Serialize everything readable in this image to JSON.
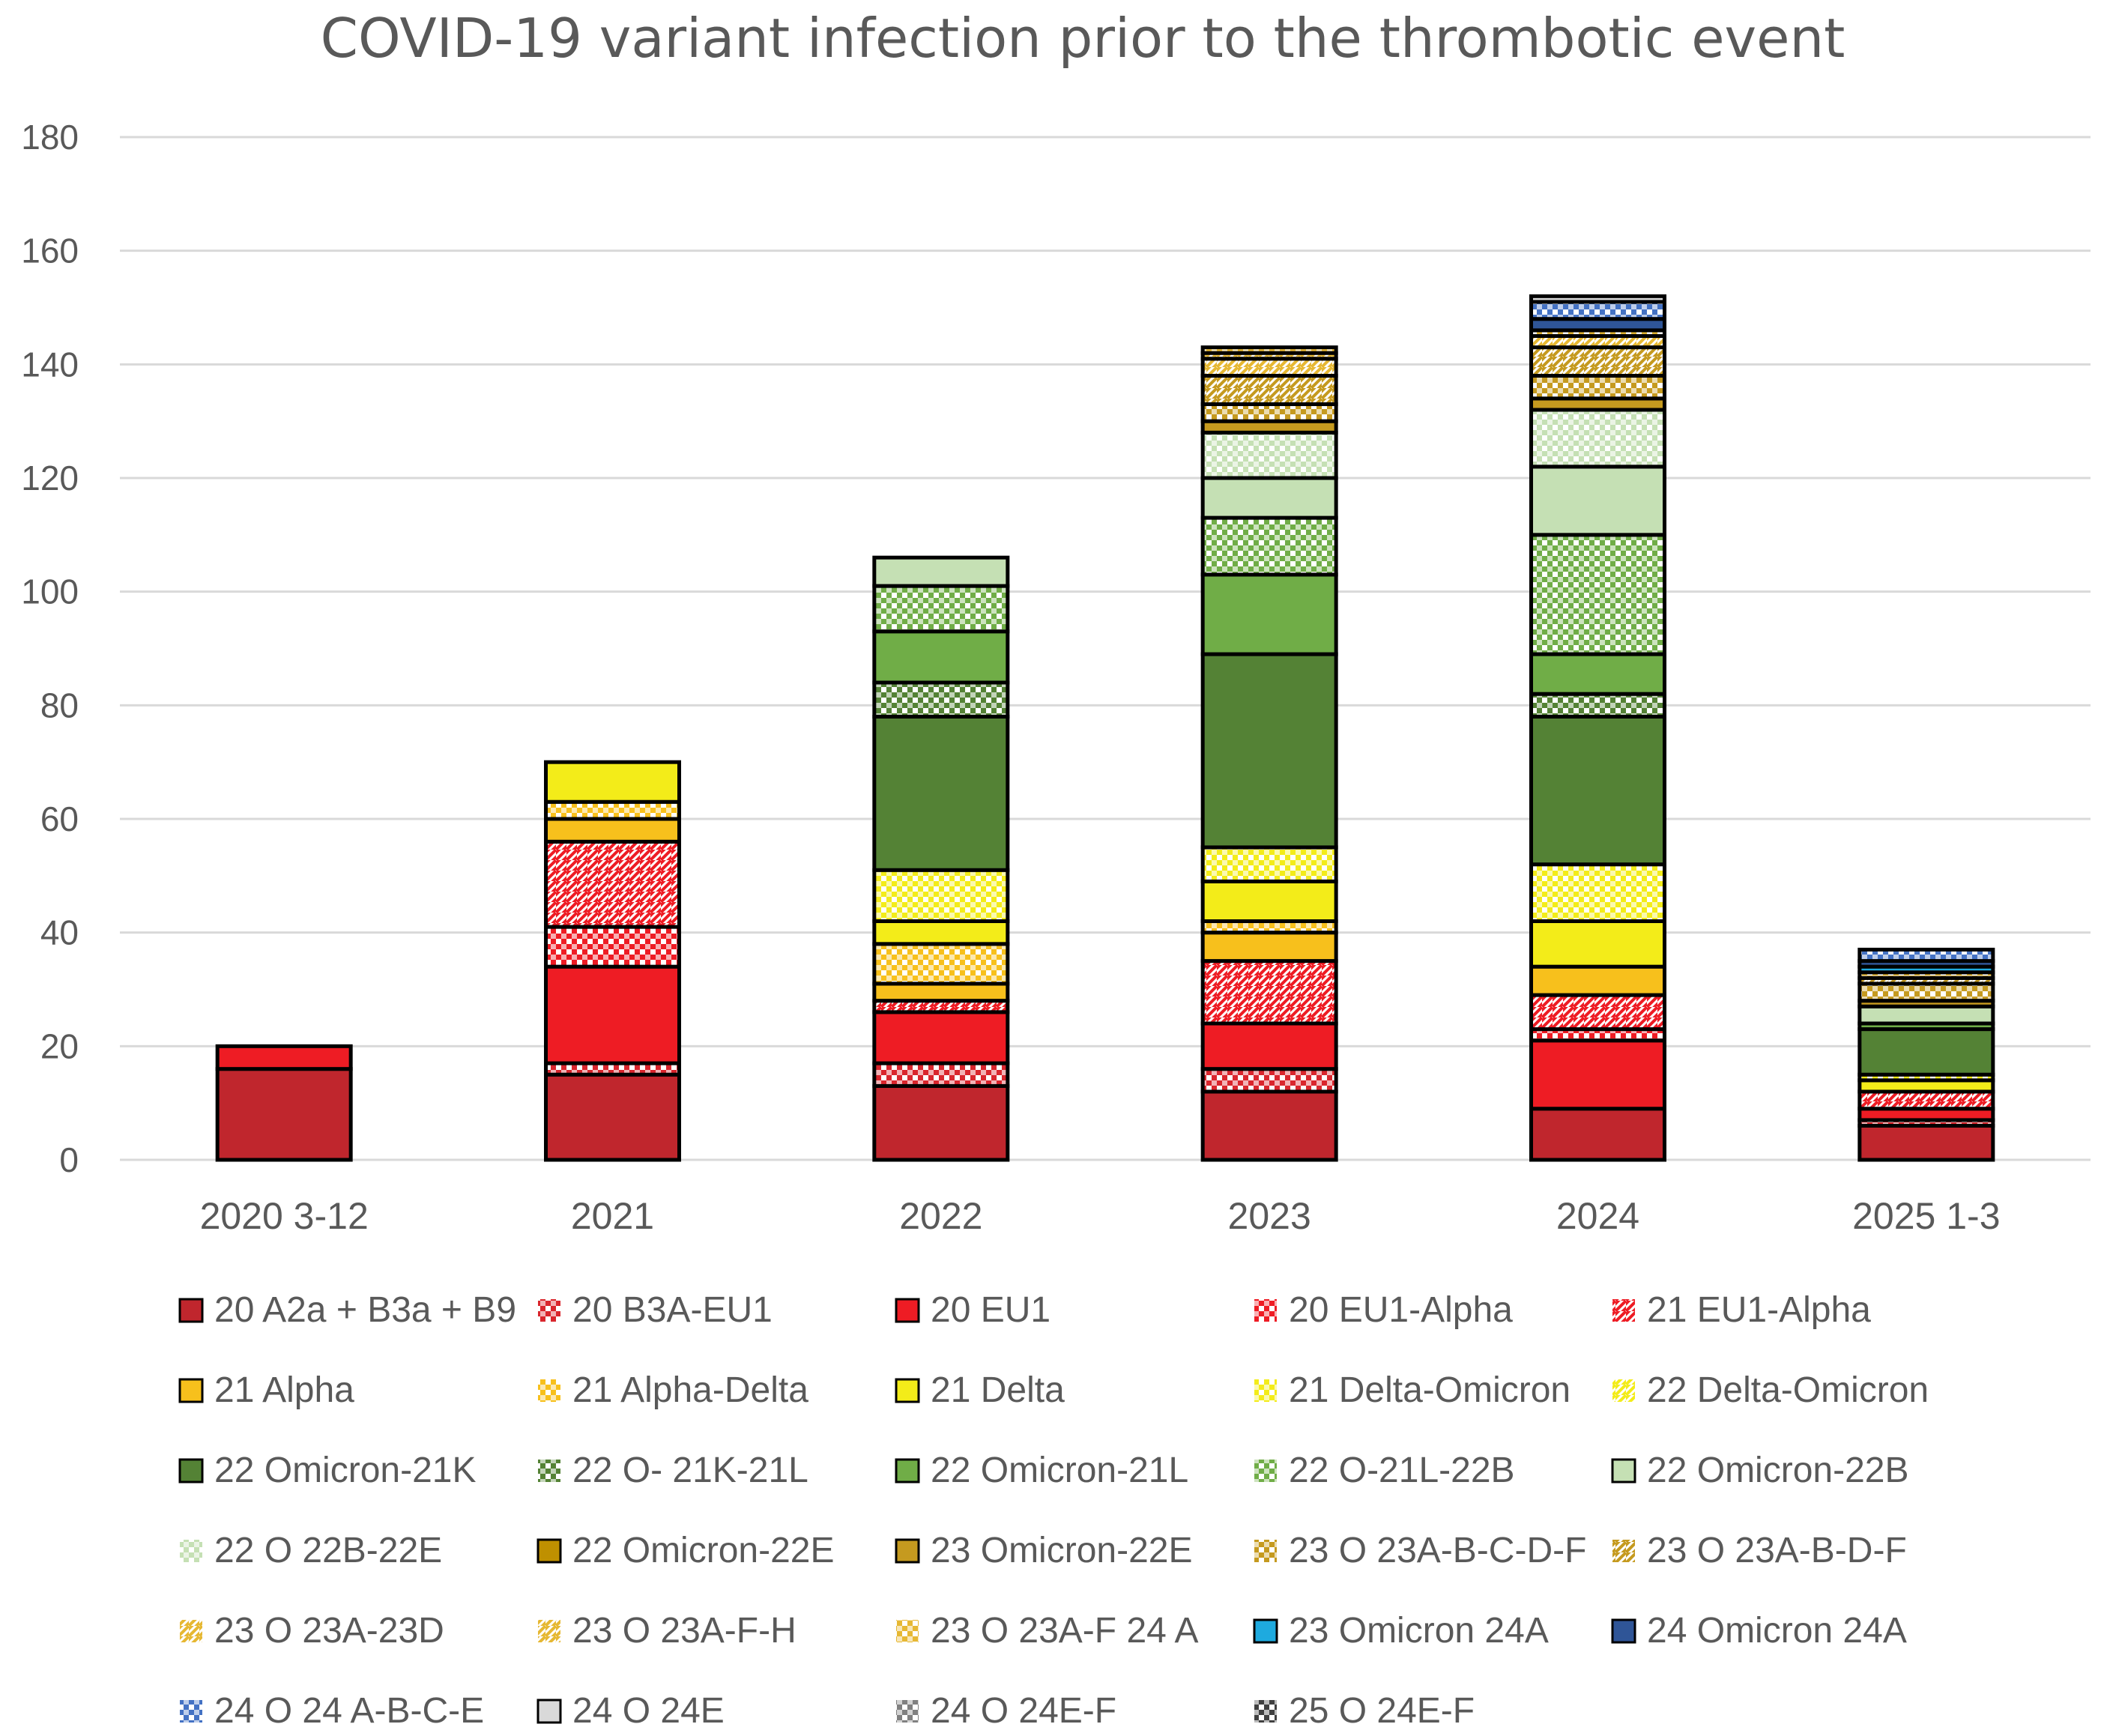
{
  "chart_data": {
    "type": "stacked-bar",
    "title": "COVID-19 variant infection prior to the thrombotic event",
    "ylim": [
      0,
      180
    ],
    "yticks": [
      0,
      20,
      40,
      60,
      80,
      100,
      120,
      140,
      160,
      180
    ],
    "grid": true,
    "legend_position": "bottom",
    "categories": [
      "2020 3-12",
      "2021",
      "2022",
      "2023",
      "2024",
      "2025 1-3"
    ],
    "series": [
      {
        "name": "20 A2a + B3a + B9",
        "color": "#c0262d",
        "pattern": "solid",
        "values": [
          16,
          15,
          13,
          12,
          9,
          6
        ]
      },
      {
        "name": "20 B3A-EU1",
        "color": "#d9262d",
        "pattern": "dots",
        "values": [
          0,
          2,
          4,
          4,
          0,
          1
        ]
      },
      {
        "name": "20 EU1",
        "color": "#ee1c24",
        "pattern": "solid",
        "values": [
          4,
          17,
          9,
          8,
          12,
          2
        ]
      },
      {
        "name": "20 EU1-Alpha",
        "color": "#ee1c24",
        "pattern": "dots",
        "values": [
          0,
          7,
          0,
          0,
          2,
          0
        ]
      },
      {
        "name": "21 EU1-Alpha",
        "color": "#ee1c24",
        "pattern": "diag",
        "values": [
          0,
          15,
          2,
          11,
          6,
          3
        ]
      },
      {
        "name": "21 Alpha",
        "color": "#f7c01c",
        "pattern": "solid",
        "values": [
          0,
          4,
          3,
          5,
          5,
          0
        ]
      },
      {
        "name": "21 Alpha-Delta",
        "color": "#f7c01c",
        "pattern": "dots",
        "values": [
          0,
          3,
          7,
          2,
          0,
          0
        ]
      },
      {
        "name": "21 Delta",
        "color": "#f3ec19",
        "pattern": "solid",
        "values": [
          0,
          7,
          4,
          7,
          8,
          2
        ]
      },
      {
        "name": "21 Delta-Omicron",
        "color": "#f3ec19",
        "pattern": "dots",
        "values": [
          0,
          0,
          9,
          6,
          10,
          1
        ]
      },
      {
        "name": "22 Delta-Omicron",
        "color": "#f3ec19",
        "pattern": "diag",
        "values": [
          0,
          0,
          0,
          0,
          0,
          0
        ]
      },
      {
        "name": "22 Omicron-21K",
        "color": "#548235",
        "pattern": "solid",
        "values": [
          0,
          0,
          27,
          34,
          26,
          8
        ]
      },
      {
        "name": "22 O- 21K-21L",
        "color": "#548235",
        "pattern": "dots",
        "values": [
          0,
          0,
          6,
          0,
          4,
          0
        ]
      },
      {
        "name": "22 Omicron-21L",
        "color": "#70ad47",
        "pattern": "solid",
        "values": [
          0,
          0,
          9,
          14,
          7,
          1
        ]
      },
      {
        "name": "22 O-21L-22B",
        "color": "#70ad47",
        "pattern": "dots",
        "values": [
          0,
          0,
          8,
          10,
          21,
          0
        ]
      },
      {
        "name": "22 Omicron-22B",
        "color": "#c5e0b4",
        "pattern": "solid",
        "values": [
          0,
          0,
          5,
          7,
          12,
          3
        ]
      },
      {
        "name": "22 O 22B-22E",
        "color": "#c5e0b4",
        "pattern": "dots",
        "values": [
          0,
          0,
          0,
          8,
          10,
          0
        ]
      },
      {
        "name": "22 Omicron-22E",
        "color": "#bf9000",
        "pattern": "solid",
        "values": [
          0,
          0,
          0,
          0,
          0,
          0
        ]
      },
      {
        "name": "23 Omicron-22E",
        "color": "#c59a1f",
        "pattern": "solid",
        "values": [
          0,
          0,
          0,
          2,
          2,
          1
        ]
      },
      {
        "name": "23 O 23A-B-C-D-F",
        "color": "#c59a1f",
        "pattern": "dots",
        "values": [
          0,
          0,
          0,
          3,
          4,
          3
        ]
      },
      {
        "name": "23 O 23A-B-D-F",
        "color": "#c59a1f",
        "pattern": "diag",
        "values": [
          0,
          0,
          0,
          5,
          5,
          1
        ]
      },
      {
        "name": "23 O 23A-23D",
        "color": "#e6b833",
        "pattern": "diag",
        "values": [
          0,
          0,
          0,
          3,
          2,
          0
        ]
      },
      {
        "name": "23 O 23A-F-H",
        "color": "#e6b833",
        "pattern": "diag",
        "values": [
          0,
          0,
          0,
          1,
          0,
          0
        ]
      },
      {
        "name": "23 O 23A-F 24 A",
        "color": "#e6b833",
        "pattern": "dots",
        "values": [
          0,
          0,
          0,
          1,
          1,
          1
        ]
      },
      {
        "name": "23 Omicron 24A",
        "color": "#1eaadf",
        "pattern": "solid",
        "values": [
          0,
          0,
          0,
          0,
          0,
          1
        ]
      },
      {
        "name": "24 Omicron 24A",
        "color": "#2f5597",
        "pattern": "solid",
        "values": [
          0,
          0,
          0,
          0,
          2,
          1
        ]
      },
      {
        "name": "24 O 24 A-B-C-E",
        "color": "#4472c4",
        "pattern": "dots",
        "values": [
          0,
          0,
          0,
          0,
          3,
          2
        ]
      },
      {
        "name": "24 O 24E",
        "color": "#d9d9d9",
        "pattern": "solid",
        "values": [
          0,
          0,
          0,
          0,
          1,
          0
        ]
      },
      {
        "name": "24 O 24E-F",
        "color": "#808080",
        "pattern": "dots",
        "values": [
          0,
          0,
          0,
          0,
          0,
          0
        ]
      },
      {
        "name": "25 O 24E-F",
        "color": "#404040",
        "pattern": "dots",
        "values": [
          0,
          0,
          0,
          0,
          0,
          0
        ]
      }
    ]
  }
}
